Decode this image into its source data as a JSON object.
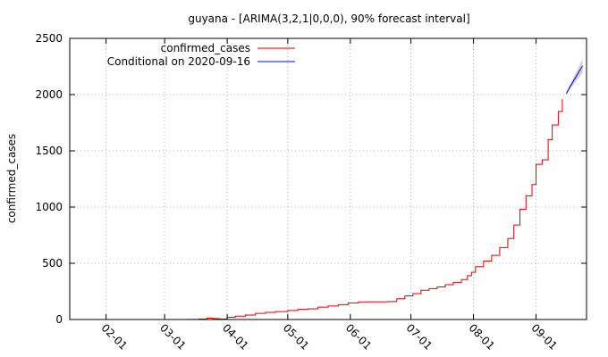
{
  "chart_data": {
    "type": "line",
    "title": "guyana -  [ARIMA(3,2,1|0,0,0), 90% forecast interval]",
    "xlabel": "",
    "ylabel": "confirmed_cases",
    "x_axis": {
      "type": "date",
      "range": [
        "2020-01-14",
        "2020-09-26"
      ],
      "ticks": [
        "2020-02-01",
        "2020-03-01",
        "2020-04-01",
        "2020-05-01",
        "2020-06-01",
        "2020-07-01",
        "2020-08-01",
        "2020-09-01"
      ],
      "tick_labels": [
        "02-01",
        "03-01",
        "04-01",
        "05-01",
        "06-01",
        "07-01",
        "08-01",
        "09-01"
      ]
    },
    "y_axis": {
      "range": [
        0,
        2500
      ],
      "ticks": [
        0,
        500,
        1000,
        1500,
        2000,
        2500
      ],
      "tick_labels": [
        "0",
        "500",
        "1000",
        "1500",
        "2000",
        "2500"
      ]
    },
    "grid": true,
    "legend_position": "top-left",
    "series": [
      {
        "name": "confirmed_cases",
        "color": "#e00000",
        "points": [
          [
            "2020-03-12",
            1
          ],
          [
            "2020-03-18",
            4
          ],
          [
            "2020-03-22",
            12
          ],
          [
            "2020-03-25",
            8
          ],
          [
            "2020-03-28",
            5
          ],
          [
            "2020-04-01",
            20
          ],
          [
            "2020-04-05",
            30
          ],
          [
            "2020-04-10",
            40
          ],
          [
            "2020-04-15",
            55
          ],
          [
            "2020-04-20",
            63
          ],
          [
            "2020-04-25",
            70
          ],
          [
            "2020-05-01",
            80
          ],
          [
            "2020-05-06",
            90
          ],
          [
            "2020-05-11",
            95
          ],
          [
            "2020-05-16",
            110
          ],
          [
            "2020-05-21",
            120
          ],
          [
            "2020-05-26",
            132
          ],
          [
            "2020-05-31",
            148
          ],
          [
            "2020-06-05",
            157
          ],
          [
            "2020-06-10",
            158
          ],
          [
            "2020-06-15",
            158
          ],
          [
            "2020-06-20",
            160
          ],
          [
            "2020-06-24",
            185
          ],
          [
            "2020-06-28",
            210
          ],
          [
            "2020-07-02",
            230
          ],
          [
            "2020-07-06",
            260
          ],
          [
            "2020-07-10",
            275
          ],
          [
            "2020-07-14",
            290
          ],
          [
            "2020-07-18",
            310
          ],
          [
            "2020-07-22",
            330
          ],
          [
            "2020-07-26",
            355
          ],
          [
            "2020-07-29",
            390
          ],
          [
            "2020-07-31",
            420
          ],
          [
            "2020-08-02",
            470
          ],
          [
            "2020-08-06",
            520
          ],
          [
            "2020-08-10",
            570
          ],
          [
            "2020-08-14",
            640
          ],
          [
            "2020-08-18",
            720
          ],
          [
            "2020-08-21",
            840
          ],
          [
            "2020-08-24",
            980
          ],
          [
            "2020-08-27",
            1100
          ],
          [
            "2020-08-30",
            1200
          ],
          [
            "2020-09-01",
            1380
          ],
          [
            "2020-09-04",
            1420
          ],
          [
            "2020-09-07",
            1600
          ],
          [
            "2020-09-09",
            1730
          ],
          [
            "2020-09-12",
            1850
          ],
          [
            "2020-09-14",
            1960
          ]
        ]
      },
      {
        "name": "Conditional on 2020-09-16",
        "color": "#0000e0",
        "points": [
          [
            "2020-09-16",
            2010
          ],
          [
            "2020-09-18",
            2075
          ],
          [
            "2020-09-20",
            2135
          ],
          [
            "2020-09-22",
            2195
          ],
          [
            "2020-09-24",
            2255
          ]
        ],
        "interval_90": {
          "lower": [
            2000,
            2050,
            2100,
            2145,
            2190
          ],
          "upper": [
            2020,
            2100,
            2170,
            2245,
            2315
          ]
        }
      }
    ]
  }
}
